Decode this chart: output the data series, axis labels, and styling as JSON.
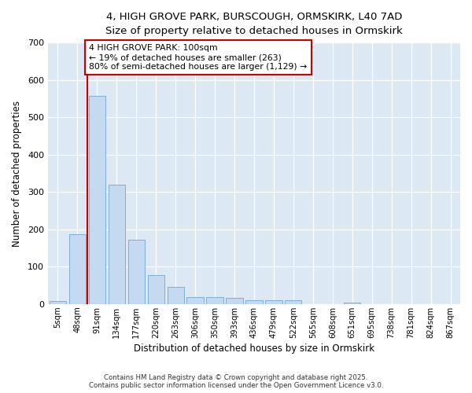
{
  "title_line1": "4, HIGH GROVE PARK, BURSCOUGH, ORMSKIRK, L40 7AD",
  "title_line2": "Size of property relative to detached houses in Ormskirk",
  "xlabel": "Distribution of detached houses by size in Ormskirk",
  "ylabel": "Number of detached properties",
  "categories": [
    "5sqm",
    "48sqm",
    "91sqm",
    "134sqm",
    "177sqm",
    "220sqm",
    "263sqm",
    "306sqm",
    "350sqm",
    "393sqm",
    "436sqm",
    "479sqm",
    "522sqm",
    "565sqm",
    "608sqm",
    "651sqm",
    "695sqm",
    "738sqm",
    "781sqm",
    "824sqm",
    "867sqm"
  ],
  "values": [
    8,
    188,
    557,
    320,
    172,
    78,
    47,
    19,
    19,
    17,
    11,
    11,
    10,
    0,
    0,
    4,
    0,
    0,
    0,
    0,
    0
  ],
  "bar_color": "#c5d9f0",
  "bar_edge_color": "#7bafd4",
  "vline_color": "#cc0000",
  "annotation_text": "4 HIGH GROVE PARK: 100sqm\n← 19% of detached houses are smaller (263)\n80% of semi-detached houses are larger (1,129) →",
  "annotation_box_color": "#cc0000",
  "annotation_bg": "#ffffff",
  "ylim": [
    0,
    700
  ],
  "yticks": [
    0,
    100,
    200,
    300,
    400,
    500,
    600,
    700
  ],
  "plot_bg_color": "#dce9f5",
  "fig_bg_color": "#ffffff",
  "footer_line1": "Contains HM Land Registry data © Crown copyright and database right 2025.",
  "footer_line2": "Contains public sector information licensed under the Open Government Licence v3.0.",
  "vline_bar_index": 2
}
